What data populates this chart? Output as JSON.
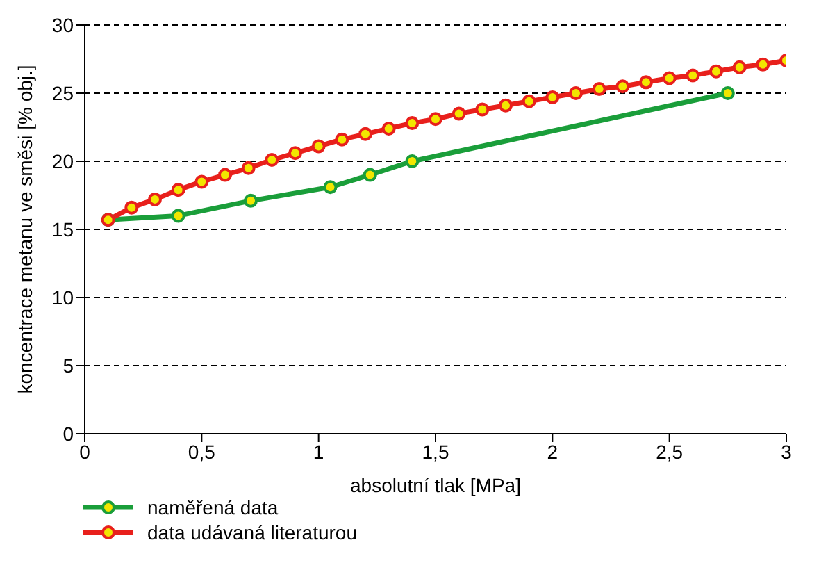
{
  "chart_data": {
    "type": "line",
    "xlabel": "absolutní tlak [MPa]",
    "ylabel": "koncentrace metanu ve směsi [% obj.]",
    "xlim": [
      0,
      3
    ],
    "xticks": [
      0,
      {
        "value": 0.5,
        "label": "0,5"
      },
      1,
      {
        "value": 1.5,
        "label": "1,5"
      },
      2,
      {
        "value": 2.5,
        "label": "2,5"
      },
      3
    ],
    "ylim": [
      0,
      30
    ],
    "yticks": [
      0,
      5,
      10,
      15,
      20,
      25,
      30
    ],
    "grid": "y",
    "legend": "bottom left",
    "marker": "circle",
    "line_style": "solid",
    "series": [
      {
        "name": "naměřená data",
        "color": "#1a9e3a",
        "x": [
          0.1,
          0.4,
          0.71,
          1.05,
          1.22,
          1.4,
          2.75
        ],
        "values": [
          15.7,
          16.0,
          17.1,
          18.1,
          19.0,
          20.0,
          25.0
        ]
      },
      {
        "name": "data udávaná literaturou",
        "color": "#e8201c",
        "x": [
          0.1,
          0.2,
          0.3,
          0.4,
          0.5,
          0.6,
          0.7,
          0.8,
          0.9,
          1.0,
          1.1,
          1.2,
          1.3,
          1.4,
          1.5,
          1.6,
          1.7,
          1.8,
          1.9,
          2.0,
          2.1,
          2.2,
          2.3,
          2.4,
          2.5,
          2.6,
          2.7,
          2.8,
          2.9,
          3.0
        ],
        "values": [
          15.7,
          16.6,
          17.2,
          17.9,
          18.5,
          19.0,
          19.5,
          20.1,
          20.6,
          21.1,
          21.6,
          22.0,
          22.4,
          22.8,
          23.1,
          23.5,
          23.8,
          24.1,
          24.4,
          24.7,
          25.0,
          25.3,
          25.5,
          25.8,
          26.1,
          26.3,
          26.6,
          26.9,
          27.1,
          27.4
        ]
      }
    ]
  }
}
